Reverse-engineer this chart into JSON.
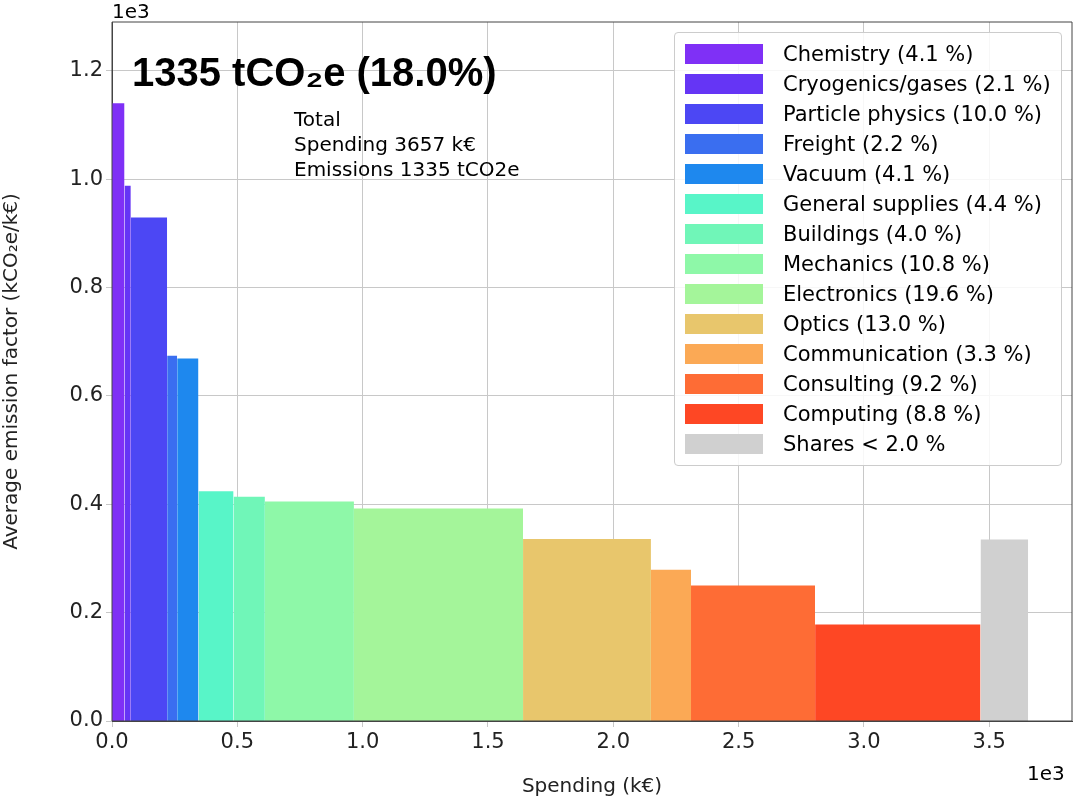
{
  "chart_data": {
    "type": "histogram",
    "title": "1335 tCO₂e (18.0%)",
    "xlabel": "Spending (k€)",
    "ylabel": "Average emission factor (kCO₂e/k€)",
    "annotations": [
      "Total\nSpending 3657 k€\nEmissions 1335 tCO2e",
      "1e3",
      "1e3"
    ],
    "bins": [
      0,
      0.05,
      0.075,
      0.22,
      0.26,
      0.345,
      0.485,
      0.61,
      0.965,
      1.64,
      2.15,
      2.31,
      2.805,
      3.465,
      3.655
    ],
    "series": [
      {
        "name": "Chemistry (4.1 %)",
        "color": "#7f30f6",
        "values": [
          1.14,
          null,
          null,
          null,
          null,
          null,
          null,
          null,
          null,
          null,
          null,
          null,
          null,
          null
        ]
      },
      {
        "name": "Cryogenics/gases (2.1 %)",
        "color": "#6535f5",
        "values": [
          null,
          0.988,
          null,
          null,
          null,
          null,
          null,
          null,
          null,
          null,
          null,
          null,
          null,
          null
        ]
      },
      {
        "name": "Particle physics (10.0 %)",
        "color": "#4c47f4",
        "values": [
          null,
          null,
          0.929,
          null,
          null,
          null,
          null,
          null,
          null,
          null,
          null,
          null,
          null,
          null
        ]
      },
      {
        "name": "Freight (2.2 %)",
        "color": "#3a6ef0",
        "values": [
          null,
          null,
          null,
          0.674,
          null,
          null,
          null,
          null,
          null,
          null,
          null,
          null,
          null,
          null
        ]
      },
      {
        "name": "Vacuum (4.1 %)",
        "color": "#1e88ee",
        "values": [
          null,
          null,
          null,
          null,
          0.669,
          null,
          null,
          null,
          null,
          null,
          null,
          null,
          null,
          null
        ]
      },
      {
        "name": "General supplies (4.4 %)",
        "color": "#58f5c8",
        "values": [
          null,
          null,
          null,
          null,
          null,
          0.424,
          null,
          null,
          null,
          null,
          null,
          null,
          null,
          null
        ]
      },
      {
        "name": "Buildings (4.0 %)",
        "color": "#70f6b8",
        "values": [
          null,
          null,
          null,
          null,
          null,
          null,
          0.414,
          null,
          null,
          null,
          null,
          null,
          null,
          null
        ]
      },
      {
        "name": "Mechanics (10.8 %)",
        "color": "#8ef8a8",
        "values": [
          null,
          null,
          null,
          null,
          null,
          null,
          null,
          0.405,
          null,
          null,
          null,
          null,
          null,
          null
        ]
      },
      {
        "name": "Electronics (19.6 %)",
        "color": "#a4f59a",
        "values": [
          null,
          null,
          null,
          null,
          null,
          null,
          null,
          null,
          0.392,
          null,
          null,
          null,
          null,
          null
        ]
      },
      {
        "name": "Optics (13.0 %)",
        "color": "#e8c66c",
        "values": [
          null,
          null,
          null,
          null,
          null,
          null,
          null,
          null,
          null,
          0.336,
          null,
          null,
          null,
          null
        ]
      },
      {
        "name": "Communication (3.3 %)",
        "color": "#fba955",
        "values": [
          null,
          null,
          null,
          null,
          null,
          null,
          null,
          null,
          null,
          null,
          0.279,
          null,
          null,
          null
        ]
      },
      {
        "name": "Consulting (9.2 %)",
        "color": "#fe6c35",
        "values": [
          null,
          null,
          null,
          null,
          null,
          null,
          null,
          null,
          null,
          null,
          null,
          0.25,
          null,
          null
        ]
      },
      {
        "name": "Computing (8.8 %)",
        "color": "#fe4724",
        "values": [
          null,
          null,
          null,
          null,
          null,
          null,
          null,
          null,
          null,
          null,
          null,
          null,
          0.178,
          null
        ]
      },
      {
        "name": "Shares < 2.0 %",
        "color": "#d0d0d0",
        "values": [
          null,
          null,
          null,
          null,
          null,
          null,
          null,
          null,
          null,
          null,
          null,
          null,
          null,
          0.335
        ]
      }
    ],
    "xlim": [
      0,
      3.83
    ],
    "ylim": [
      0,
      1.29
    ],
    "xticks": [
      {
        "value": 0,
        "label": "0.0"
      },
      0.5,
      {
        "value": 1,
        "label": "1.0"
      },
      1.5,
      {
        "value": 2,
        "label": "2.0"
      },
      2.5,
      {
        "value": 3,
        "label": "3.0"
      },
      3.5
    ],
    "yticks": [
      {
        "value": 0,
        "label": "0.0"
      },
      0.2,
      0.4,
      0.6,
      0.8,
      {
        "value": 1,
        "label": "1.0"
      },
      1.2
    ],
    "grid": true,
    "legend": "top right"
  }
}
